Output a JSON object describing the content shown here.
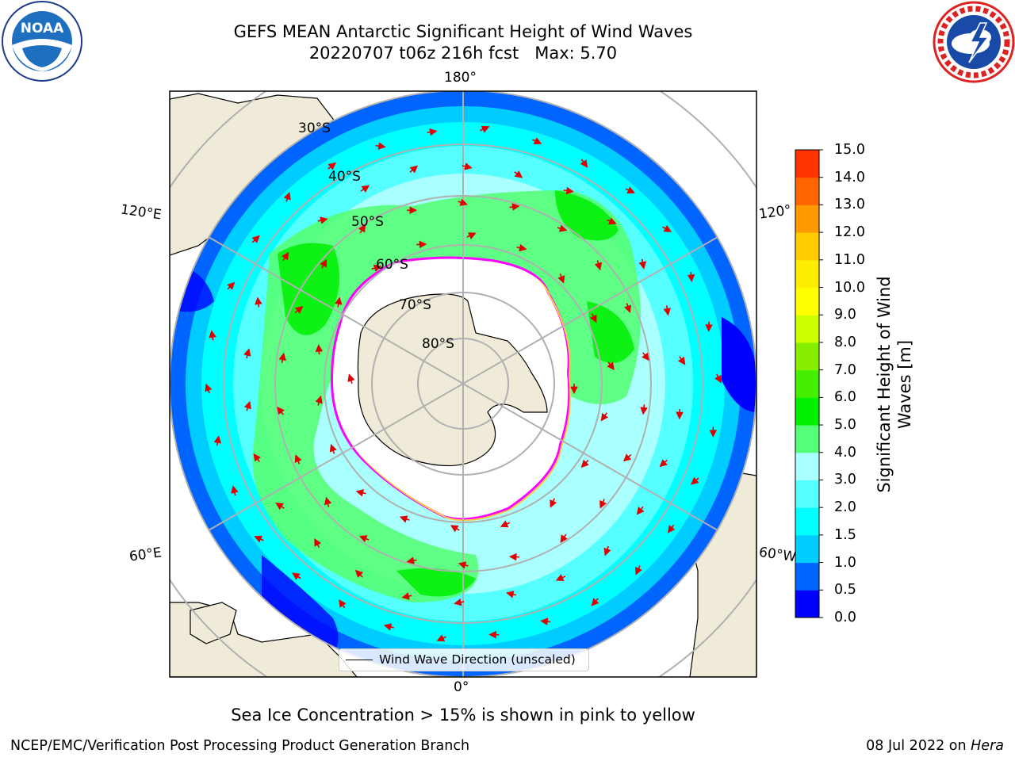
{
  "title": {
    "line1": "GEFS MEAN Antarctic Significant Height of Wind Waves",
    "line2": "20220707 t06z 216h fcst   Max: 5.70"
  },
  "logos": {
    "left": {
      "icon": "noaa-logo",
      "text": "NOAA"
    },
    "right": {
      "icon": "national-weather-service-logo"
    }
  },
  "map": {
    "projection": "south-polar-stereographic",
    "meridian_labels": {
      "top": "180°",
      "bottom": "0°",
      "left_upper": "120°E",
      "left_lower": "60°E",
      "right_upper": "120°",
      "right_lower": "60°W"
    },
    "latitude_labels": [
      "30°S",
      "40°S",
      "50°S",
      "60°S",
      "70°S",
      "80°S"
    ],
    "land_color": "#efebd8",
    "ice_color": "#ffffff",
    "ice_edge_colors": [
      "#ff00ff",
      "#ff66cc",
      "#ffcc44"
    ],
    "arrow_color": "#e00000"
  },
  "legend": {
    "label": "Wind Wave Direction (unscaled)"
  },
  "colorbar": {
    "title": "Significant Height of Wind Waves [m]",
    "ticks": [
      "0.0",
      "0.5",
      "1.0",
      "1.5",
      "2.0",
      "3.0",
      "4.0",
      "5.0",
      "6.0",
      "7.0",
      "8.0",
      "9.0",
      "10.0",
      "11.0",
      "12.0",
      "13.0",
      "14.0",
      "15.0"
    ],
    "colors": [
      "#0000ff",
      "#0064ff",
      "#00ccff",
      "#00ffff",
      "#55ffff",
      "#aaffff",
      "#55ff77",
      "#00ee00",
      "#44ee00",
      "#88ee00",
      "#ccff00",
      "#ffff00",
      "#ffee00",
      "#ffcc00",
      "#ff9900",
      "#ff6600",
      "#ff3300"
    ]
  },
  "caption": "Sea Ice Concentration > 15% is shown in pink to yellow",
  "footer": {
    "left": "NCEP/EMC/Verification Post Processing Product Generation Branch",
    "right_prefix": "08 Jul 2022 on ",
    "right_machine": "Hera"
  }
}
